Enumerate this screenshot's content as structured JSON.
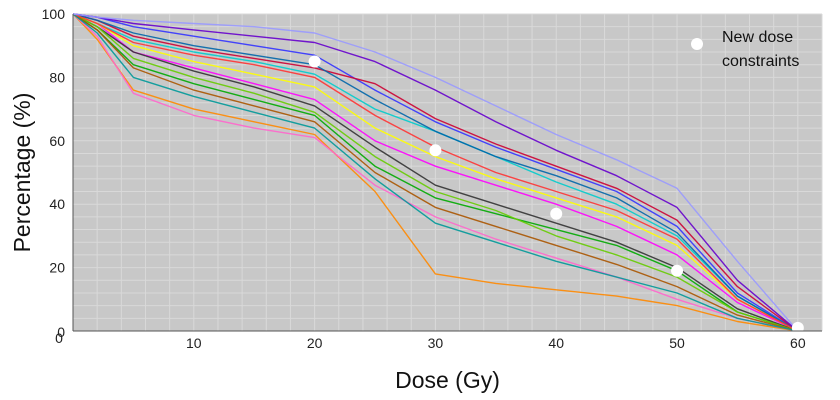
{
  "chart_data": {
    "type": "line",
    "title": "",
    "xlabel": "Dose (Gy)",
    "ylabel": "Percentage (%)",
    "xlim": [
      0,
      62
    ],
    "ylim": [
      0,
      100
    ],
    "x_ticks": [
      10,
      20,
      30,
      40,
      50,
      60
    ],
    "y_ticks": [
      0,
      20,
      40,
      60,
      80,
      100
    ],
    "x_origin_label": "0",
    "grid": true,
    "legend_position": "top-right",
    "background_color": "#c8c8c8",
    "grid_color": "#d9d9d9",
    "series_description": "many overlapping dose-volume histogram curves",
    "series": [
      {
        "name": "",
        "color": "#ff00ff",
        "x": [
          0,
          2,
          5,
          10,
          15,
          20,
          25,
          30,
          35,
          40,
          45,
          50,
          55,
          60
        ],
        "y": [
          100,
          97,
          88,
          83,
          78,
          73,
          60,
          52,
          46,
          40,
          33,
          24,
          9,
          0
        ]
      },
      {
        "name": "",
        "color": "#3333ff",
        "x": [
          0,
          2,
          5,
          10,
          15,
          20,
          25,
          30,
          35,
          40,
          45,
          50,
          55,
          60
        ],
        "y": [
          100,
          99,
          96,
          93,
          90,
          87,
          76,
          66,
          58,
          51,
          44,
          33,
          12,
          0
        ]
      },
      {
        "name": "",
        "color": "#00aa00",
        "x": [
          0,
          2,
          5,
          10,
          15,
          20,
          25,
          30,
          35,
          40,
          45,
          50,
          55,
          60
        ],
        "y": [
          100,
          95,
          84,
          78,
          73,
          68,
          52,
          42,
          37,
          32,
          27,
          19,
          6,
          0
        ]
      },
      {
        "name": "",
        "color": "#ff8800",
        "x": [
          0,
          2,
          5,
          10,
          15,
          20,
          25,
          30,
          35,
          40,
          45,
          50,
          55,
          60
        ],
        "y": [
          100,
          92,
          76,
          70,
          66,
          62,
          44,
          18,
          15,
          13,
          11,
          8,
          3,
          0
        ]
      },
      {
        "name": "",
        "color": "#00cccc",
        "x": [
          0,
          2,
          5,
          10,
          15,
          20,
          25,
          30,
          35,
          40,
          45,
          50,
          55,
          60
        ],
        "y": [
          100,
          97,
          92,
          88,
          85,
          81,
          70,
          63,
          55,
          47,
          40,
          30,
          11,
          0
        ]
      },
      {
        "name": "",
        "color": "#cc0033",
        "x": [
          0,
          2,
          5,
          10,
          15,
          20,
          25,
          30,
          35,
          40,
          45,
          50,
          55,
          60
        ],
        "y": [
          100,
          98,
          93,
          89,
          86,
          83,
          78,
          67,
          59,
          52,
          45,
          35,
          14,
          0
        ]
      },
      {
        "name": "",
        "color": "#333333",
        "x": [
          0,
          2,
          5,
          10,
          15,
          20,
          25,
          30,
          35,
          40,
          45,
          50,
          55,
          60
        ],
        "y": [
          100,
          96,
          88,
          82,
          77,
          71,
          58,
          46,
          40,
          34,
          28,
          20,
          7,
          0
        ]
      },
      {
        "name": "",
        "color": "#ffff00",
        "x": [
          0,
          2,
          5,
          10,
          15,
          20,
          25,
          30,
          35,
          40,
          45,
          50,
          55,
          60
        ],
        "y": [
          100,
          97,
          90,
          85,
          81,
          77,
          64,
          55,
          48,
          42,
          36,
          27,
          10,
          0
        ]
      },
      {
        "name": "",
        "color": "#ff66cc",
        "x": [
          0,
          2,
          5,
          10,
          15,
          20,
          25,
          30,
          35,
          40,
          45,
          50,
          55,
          60
        ],
        "y": [
          100,
          93,
          75,
          68,
          64,
          61,
          46,
          36,
          29,
          23,
          17,
          10,
          4,
          0
        ]
      },
      {
        "name": "",
        "color": "#6600cc",
        "x": [
          0,
          2,
          5,
          10,
          15,
          20,
          25,
          30,
          35,
          40,
          45,
          50,
          55,
          60
        ],
        "y": [
          100,
          99,
          97,
          95,
          93,
          91,
          85,
          76,
          66,
          57,
          49,
          39,
          16,
          0
        ]
      },
      {
        "name": "",
        "color": "#66cc00",
        "x": [
          0,
          2,
          5,
          10,
          15,
          20,
          25,
          30,
          35,
          40,
          45,
          50,
          55,
          60
        ],
        "y": [
          100,
          96,
          86,
          80,
          75,
          69,
          55,
          44,
          38,
          30,
          24,
          17,
          6,
          0
        ]
      },
      {
        "name": "",
        "color": "#0066aa",
        "x": [
          0,
          2,
          5,
          10,
          15,
          20,
          25,
          30,
          35,
          40,
          45,
          50,
          55,
          60
        ],
        "y": [
          100,
          98,
          94,
          90,
          87,
          84,
          73,
          63,
          55,
          49,
          42,
          31,
          11,
          0
        ]
      },
      {
        "name": "",
        "color": "#aa5500",
        "x": [
          0,
          2,
          5,
          10,
          15,
          20,
          25,
          30,
          35,
          40,
          45,
          50,
          55,
          60
        ],
        "y": [
          100,
          95,
          83,
          76,
          71,
          66,
          50,
          39,
          33,
          27,
          21,
          14,
          5,
          0
        ]
      },
      {
        "name": "",
        "color": "#ff3333",
        "x": [
          0,
          2,
          5,
          10,
          15,
          20,
          25,
          30,
          35,
          40,
          45,
          50,
          55,
          60
        ],
        "y": [
          100,
          97,
          91,
          87,
          84,
          80,
          68,
          58,
          50,
          44,
          38,
          29,
          10,
          0
        ]
      },
      {
        "name": "",
        "color": "#009999",
        "x": [
          0,
          2,
          5,
          10,
          15,
          20,
          25,
          30,
          35,
          40,
          45,
          50,
          55,
          60
        ],
        "y": [
          100,
          94,
          80,
          74,
          69,
          64,
          48,
          34,
          28,
          22,
          17,
          12,
          4,
          0
        ]
      },
      {
        "name": "",
        "color": "#9999ff",
        "x": [
          0,
          2,
          5,
          10,
          15,
          20,
          25,
          30,
          35,
          40,
          45,
          50,
          55,
          60
        ],
        "y": [
          100,
          99,
          98,
          97,
          96,
          94,
          88,
          80,
          71,
          62,
          54,
          45,
          22,
          0
        ]
      }
    ],
    "markers": {
      "name": "New dose constraints",
      "color": "#ffffff",
      "points": [
        {
          "x": 20,
          "y": 85
        },
        {
          "x": 30,
          "y": 57
        },
        {
          "x": 40,
          "y": 37
        },
        {
          "x": 50,
          "y": 19
        },
        {
          "x": 60,
          "y": 1
        }
      ]
    }
  }
}
